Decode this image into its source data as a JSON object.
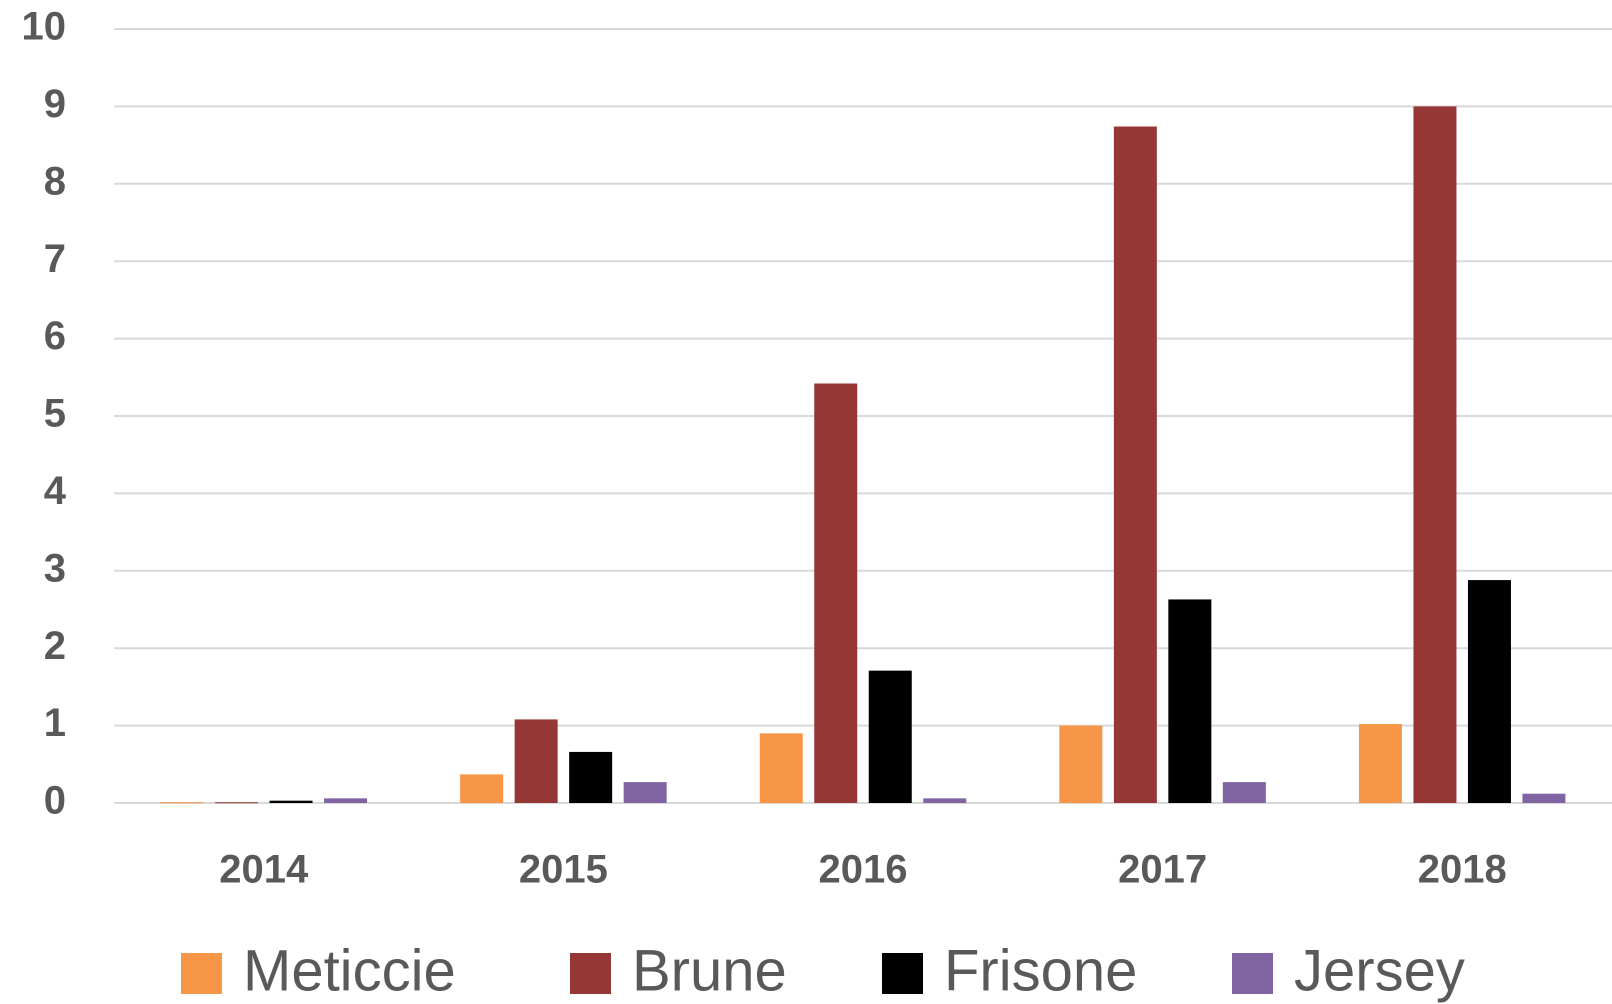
{
  "chart_data": {
    "type": "bar",
    "categories": [
      "2014",
      "2015",
      "2016",
      "2017",
      "2018"
    ],
    "series": [
      {
        "name": "Meticcie",
        "color": "#F79646",
        "values": [
          0.01,
          0.37,
          0.9,
          1.0,
          1.02
        ]
      },
      {
        "name": "Brune",
        "color": "#953735",
        "values": [
          0.01,
          1.08,
          5.42,
          8.74,
          9.0
        ]
      },
      {
        "name": "Frisone",
        "color": "#000000",
        "values": [
          0.03,
          0.66,
          1.71,
          2.63,
          2.88
        ]
      },
      {
        "name": "Jersey",
        "color": "#8064A2",
        "values": [
          0.06,
          0.27,
          0.06,
          0.27,
          0.12
        ]
      }
    ],
    "ylim": [
      0,
      10
    ],
    "yticks": [
      0,
      1,
      2,
      3,
      4,
      5,
      6,
      7,
      8,
      9,
      10
    ],
    "grid": true,
    "legend": "bottom"
  }
}
